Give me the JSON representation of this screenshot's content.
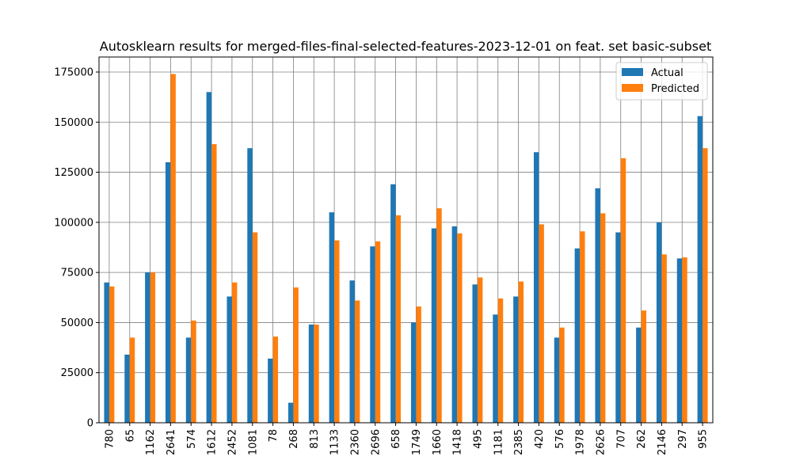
{
  "chart_data": {
    "type": "bar",
    "title": "Autosklearn results for merged-files-final-selected-features-2023-12-01 on feat. set basic-subset",
    "xlabel": "",
    "ylabel": "",
    "categories": [
      "780",
      "65",
      "1162",
      "2641",
      "574",
      "1612",
      "2452",
      "1081",
      "78",
      "268",
      "813",
      "1133",
      "2360",
      "2696",
      "658",
      "1749",
      "1660",
      "1418",
      "495",
      "1181",
      "2385",
      "420",
      "576",
      "1978",
      "2626",
      "707",
      "262",
      "2146",
      "297",
      "955"
    ],
    "series": [
      {
        "name": "Actual",
        "color": "#1f77b4",
        "values": [
          70000,
          34000,
          75000,
          130000,
          42500,
          165000,
          63000,
          137000,
          32000,
          10000,
          49000,
          105000,
          71000,
          88000,
          119000,
          50000,
          97000,
          98000,
          69000,
          54000,
          63000,
          135000,
          42500,
          87000,
          117000,
          95000,
          47500,
          100000,
          82000,
          153000
        ]
      },
      {
        "name": "Predicted",
        "color": "#ff7f0e",
        "values": [
          68000,
          42500,
          75000,
          174000,
          51000,
          139000,
          70000,
          95000,
          43000,
          67500,
          49000,
          91000,
          61000,
          90500,
          103500,
          58000,
          107000,
          94500,
          72500,
          62000,
          70500,
          99000,
          47500,
          95500,
          104500,
          132000,
          56000,
          84000,
          82500,
          137000
        ]
      }
    ],
    "ylim": [
      0,
      182500
    ],
    "yticks": [
      "0",
      "25000",
      "50000",
      "75000",
      "100000",
      "125000",
      "150000",
      "175000"
    ],
    "grid": true,
    "legend_position": "top-right"
  }
}
